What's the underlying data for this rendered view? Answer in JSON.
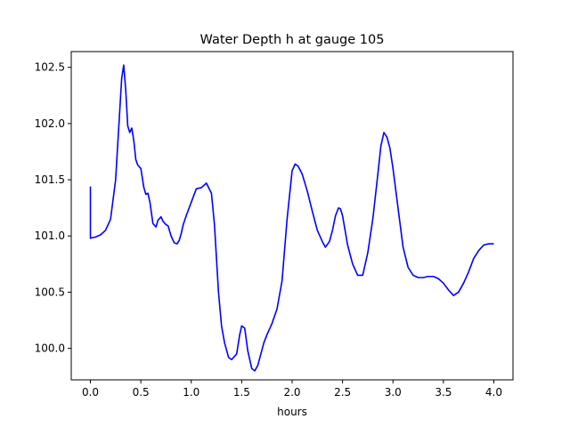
{
  "chart_data": {
    "type": "line",
    "title": "Water Depth h at gauge 105",
    "xlabel": "hours",
    "ylabel": "",
    "xlim": [
      -0.19,
      4.19
    ],
    "ylim": [
      99.72,
      102.64
    ],
    "xticks": [
      0.0,
      0.5,
      1.0,
      1.5,
      2.0,
      2.5,
      3.0,
      3.5,
      4.0
    ],
    "xtick_labels": [
      "0.0",
      "0.5",
      "1.0",
      "1.5",
      "2.0",
      "2.5",
      "3.0",
      "3.5",
      "4.0"
    ],
    "yticks": [
      100.0,
      100.5,
      101.0,
      101.5,
      102.0,
      102.5
    ],
    "ytick_labels": [
      "100.0",
      "100.5",
      "101.0",
      "101.5",
      "102.0",
      "102.5"
    ],
    "grid": false,
    "line_color": "#0000ff",
    "series": [
      {
        "x": [
          0.0,
          0.0,
          0.05,
          0.1,
          0.15,
          0.2,
          0.25,
          0.28,
          0.31,
          0.33,
          0.35,
          0.37,
          0.39,
          0.41,
          0.43,
          0.45,
          0.47,
          0.5,
          0.53,
          0.55,
          0.57,
          0.59,
          0.62,
          0.65,
          0.67,
          0.7,
          0.72,
          0.75,
          0.77,
          0.8,
          0.83,
          0.86,
          0.88,
          0.9,
          0.92,
          0.95,
          1.0,
          1.05,
          1.1,
          1.15,
          1.2,
          1.23,
          1.25,
          1.27,
          1.3,
          1.33,
          1.37,
          1.4,
          1.45,
          1.48,
          1.5,
          1.53,
          1.56,
          1.6,
          1.63,
          1.66,
          1.69,
          1.72,
          1.75,
          1.8,
          1.85,
          1.9,
          1.95,
          2.0,
          2.03,
          2.06,
          2.1,
          2.15,
          2.2,
          2.25,
          2.3,
          2.33,
          2.37,
          2.4,
          2.43,
          2.46,
          2.48,
          2.5,
          2.55,
          2.6,
          2.65,
          2.7,
          2.75,
          2.8,
          2.85,
          2.88,
          2.91,
          2.94,
          2.97,
          3.0,
          3.05,
          3.1,
          3.15,
          3.2,
          3.25,
          3.3,
          3.35,
          3.4,
          3.45,
          3.5,
          3.55,
          3.6,
          3.65,
          3.7,
          3.75,
          3.8,
          3.85,
          3.9,
          3.95,
          4.0
        ],
        "y": [
          101.44,
          100.98,
          100.99,
          101.01,
          101.05,
          101.15,
          101.5,
          101.95,
          102.4,
          102.52,
          102.3,
          101.98,
          101.92,
          101.96,
          101.85,
          101.68,
          101.63,
          101.6,
          101.43,
          101.37,
          101.38,
          101.3,
          101.11,
          101.08,
          101.14,
          101.17,
          101.13,
          101.1,
          101.09,
          101.0,
          100.94,
          100.93,
          100.96,
          101.02,
          101.1,
          101.18,
          101.3,
          101.42,
          101.43,
          101.47,
          101.38,
          101.1,
          100.8,
          100.5,
          100.2,
          100.05,
          99.92,
          99.9,
          99.95,
          100.12,
          100.2,
          100.18,
          99.98,
          99.82,
          99.8,
          99.85,
          99.95,
          100.05,
          100.12,
          100.22,
          100.35,
          100.6,
          101.15,
          101.58,
          101.64,
          101.62,
          101.55,
          101.4,
          101.22,
          101.05,
          100.95,
          100.9,
          100.95,
          101.05,
          101.18,
          101.25,
          101.24,
          101.18,
          100.92,
          100.75,
          100.65,
          100.65,
          100.85,
          101.15,
          101.55,
          101.8,
          101.92,
          101.88,
          101.78,
          101.6,
          101.25,
          100.9,
          100.72,
          100.65,
          100.63,
          100.63,
          100.64,
          100.64,
          100.62,
          100.58,
          100.52,
          100.47,
          100.5,
          100.58,
          100.68,
          100.8,
          100.87,
          100.92,
          100.93,
          100.93
        ]
      }
    ]
  }
}
